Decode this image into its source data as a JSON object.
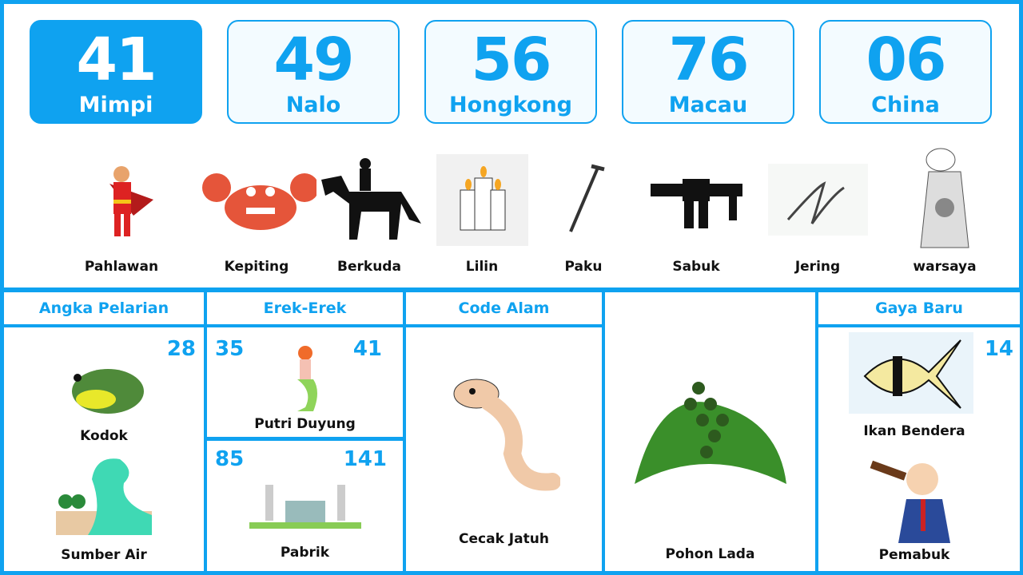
{
  "accent": "#0fa2f0",
  "numbers": [
    {
      "value": "41",
      "label": "Mimpi",
      "active": true
    },
    {
      "value": "49",
      "label": "Nalo"
    },
    {
      "value": "56",
      "label": "Hongkong"
    },
    {
      "value": "76",
      "label": "Macau"
    },
    {
      "value": "06",
      "label": "China"
    }
  ],
  "symbols": [
    {
      "name": "Pahlawan",
      "icon": "superhero-icon"
    },
    {
      "name": "Kepiting",
      "icon": "crab-icon"
    },
    {
      "name": "Berkuda",
      "icon": "horse-rider-icon"
    },
    {
      "name": "Lilin",
      "icon": "candles-icon"
    },
    {
      "name": "Paku",
      "icon": "nail-icon"
    },
    {
      "name": "Sabuk",
      "icon": "belt-icon"
    },
    {
      "name": "Jering",
      "icon": "wire-icon"
    },
    {
      "name": "warsaya",
      "icon": "wayang-icon"
    }
  ],
  "sections": {
    "angka_pelarian": {
      "title": "Angka Pelarian",
      "number": "28",
      "items": [
        "Kodok",
        "Sumber Air"
      ]
    },
    "erek_erek": {
      "title": "Erek-Erek",
      "top": {
        "left": "35",
        "right": "41",
        "name": "Putri Duyung"
      },
      "bottom": {
        "left": "85",
        "right": "141",
        "name": "Pabrik"
      }
    },
    "code_alam": {
      "title": "Code Alam",
      "name": "Cecak Jatuh"
    },
    "pohon": {
      "name": "Pohon Lada"
    },
    "gaya_baru": {
      "title": "Gaya Baru",
      "number": "14",
      "items": [
        "Ikan Bendera",
        "Pemabuk"
      ]
    }
  }
}
